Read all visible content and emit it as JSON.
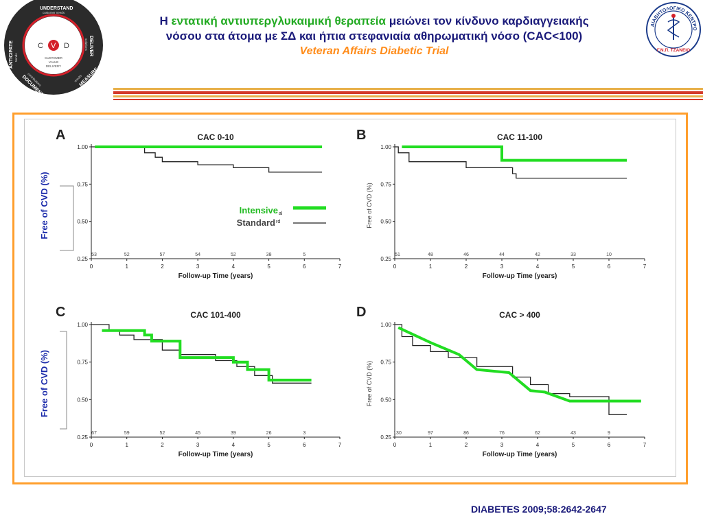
{
  "header": {
    "title_prefix": "Η ",
    "title_highlight": "εντατική αντιυπεργλυκαιμική θεραπεία",
    "title_rest_line1": " μειώνει τον κίνδυνο καρδιαγγειακής",
    "title_line2": "νόσου στα άτομα με ΣΔ και ήπια στεφανιαία αθηρωματική νόσο (CAC<100)",
    "subtitle": "Veteran Affairs Diabetic Trial",
    "colors": {
      "title": "#1a1a7a",
      "highlight": "#22aa22",
      "subtitle": "#ff8c1a"
    }
  },
  "logo_left": {
    "outer_ring": [
      "UNDERSTAND",
      "DELIVER",
      "MEASURE",
      "DOCUMENT",
      "ANTICIPATE"
    ],
    "outer_ring_sub": [
      "customer needs",
      "solutions",
      "results",
      "contributions",
      "trends"
    ],
    "center_letters": [
      "C",
      "V",
      "D"
    ],
    "center_text": [
      "CUSTOMER",
      "VALUE",
      "DELIVERY"
    ]
  },
  "logo_right": {
    "ring_text": "ΔΙΑΒΗΤΟΛΟΓΙΚΟ ΚΕΝΤΡΟ",
    "bottom_text": "Γ.Ν.Π. ΤΖΑΝΕΙΟ",
    "icon": "caduceus-icon"
  },
  "figure": {
    "frame_color": "#ff9e2c"
  },
  "legend": {
    "intensive": "Intensive",
    "intensive_sup": "al",
    "standard": "Standard",
    "standard_sup": "rd"
  },
  "citation": "DIABETES 2009;58:2642-2647",
  "chart_data": [
    {
      "panel": "A",
      "type": "line",
      "title": "CAC 0-10",
      "xlabel": "Follow-up Time (years)",
      "ylabel": "Free of CVD (%)",
      "xlim": [
        0,
        7
      ],
      "ylim": [
        0.25,
        1.0
      ],
      "xticks": [
        "0",
        "1",
        "2",
        "3",
        "4",
        "5",
        "6",
        "7"
      ],
      "yticks": [
        "1.00",
        "0.75",
        "0.50",
        "0.25"
      ],
      "at_risk": [
        "53",
        "52",
        "57",
        "54",
        "52",
        "38",
        "5"
      ],
      "series": [
        {
          "name": "Intensive",
          "color": "#22dd22",
          "x": [
            0.1,
            6.5
          ],
          "y": [
            1.0,
            1.0
          ]
        },
        {
          "name": "Standard",
          "color": "#222222",
          "x": [
            0,
            1.5,
            1.5,
            1.8,
            1.8,
            2.0,
            2.0,
            3.0,
            3.0,
            4.0,
            4.0,
            5.0,
            5.0,
            6.5
          ],
          "y": [
            1.0,
            1.0,
            0.96,
            0.96,
            0.93,
            0.93,
            0.9,
            0.9,
            0.88,
            0.88,
            0.86,
            0.86,
            0.83,
            0.83
          ]
        }
      ]
    },
    {
      "panel": "B",
      "type": "line",
      "title": "CAC 11-100",
      "xlabel": "Follow-up Time (years)",
      "ylabel": "Free of CVD (%)",
      "xlim": [
        0,
        7
      ],
      "ylim": [
        0.25,
        1.0
      ],
      "xticks": [
        "0",
        "1",
        "2",
        "3",
        "4",
        "5",
        "6",
        "7"
      ],
      "yticks": [
        "1.00",
        "0.75",
        "0.50",
        "0.25"
      ],
      "at_risk": [
        "51",
        "48",
        "46",
        "44",
        "42",
        "33",
        "10"
      ],
      "series": [
        {
          "name": "Intensive",
          "color": "#22dd22",
          "x": [
            0.2,
            3.0,
            3.0,
            6.5
          ],
          "y": [
            1.0,
            1.0,
            0.91,
            0.91
          ]
        },
        {
          "name": "Standard",
          "color": "#222222",
          "x": [
            0,
            0.1,
            0.1,
            0.4,
            0.4,
            1.0,
            1.0,
            2.0,
            2.0,
            3.3,
            3.3,
            3.4,
            3.4,
            6.5
          ],
          "y": [
            1.0,
            1.0,
            0.96,
            0.96,
            0.9,
            0.9,
            0.9,
            0.9,
            0.86,
            0.86,
            0.82,
            0.82,
            0.79,
            0.79
          ]
        }
      ]
    },
    {
      "panel": "C",
      "type": "line",
      "title": "CAC 101-400",
      "xlabel": "Follow-up Time (years)",
      "ylabel": "Free of CVD (%)",
      "xlim": [
        0,
        7
      ],
      "ylim": [
        0.25,
        1.0
      ],
      "xticks": [
        "0",
        "1",
        "2",
        "3",
        "4",
        "5",
        "6",
        "7"
      ],
      "yticks": [
        "1.00",
        "0.75",
        "0.50",
        "0.25"
      ],
      "at_risk": [
        "67",
        "59",
        "52",
        "45",
        "39",
        "26",
        "3"
      ],
      "series": [
        {
          "name": "Intensive",
          "color": "#22dd22",
          "x": [
            0.3,
            1.5,
            1.5,
            1.7,
            1.7,
            2.5,
            2.5,
            4.0,
            4.0,
            4.4,
            4.4,
            5.0,
            5.0,
            6.2
          ],
          "y": [
            0.96,
            0.96,
            0.93,
            0.93,
            0.89,
            0.89,
            0.78,
            0.78,
            0.75,
            0.75,
            0.7,
            0.7,
            0.63,
            0.63
          ]
        },
        {
          "name": "Standard",
          "color": "#222222",
          "x": [
            0,
            0.5,
            0.5,
            0.8,
            0.8,
            1.2,
            1.2,
            2.0,
            2.0,
            2.5,
            2.5,
            3.5,
            3.5,
            4.1,
            4.1,
            4.6,
            4.6,
            5.1,
            5.1,
            6.2
          ],
          "y": [
            1.0,
            1.0,
            0.96,
            0.96,
            0.93,
            0.93,
            0.9,
            0.9,
            0.83,
            0.83,
            0.8,
            0.8,
            0.76,
            0.76,
            0.72,
            0.72,
            0.66,
            0.66,
            0.61,
            0.61
          ]
        }
      ]
    },
    {
      "panel": "D",
      "type": "line",
      "title": "CAC > 400",
      "xlabel": "Follow-up Time (years)",
      "ylabel": "Free of CVD (%)",
      "xlim": [
        0,
        7
      ],
      "ylim": [
        0.25,
        1.0
      ],
      "xticks": [
        "0",
        "1",
        "2",
        "3",
        "4",
        "5",
        "6",
        "7"
      ],
      "yticks": [
        "1.00",
        "0.75",
        "0.50",
        "0.25"
      ],
      "at_risk": [
        "130",
        "97",
        "86",
        "76",
        "62",
        "43",
        "9"
      ],
      "series": [
        {
          "name": "Intensive",
          "color": "#22dd22",
          "x": [
            0.1,
            1.0,
            1.8,
            2.3,
            3.2,
            3.8,
            4.2,
            4.9,
            6.9
          ],
          "y": [
            0.98,
            0.88,
            0.8,
            0.7,
            0.68,
            0.56,
            0.55,
            0.49,
            0.49
          ]
        },
        {
          "name": "Standard",
          "color": "#222222",
          "x": [
            0,
            0.2,
            0.2,
            0.5,
            0.5,
            1.0,
            1.0,
            1.5,
            1.5,
            2.3,
            2.3,
            3.3,
            3.3,
            3.8,
            3.8,
            4.3,
            4.3,
            4.9,
            4.9,
            6.0,
            6.0,
            6.5
          ],
          "y": [
            1.0,
            1.0,
            0.92,
            0.92,
            0.86,
            0.86,
            0.82,
            0.82,
            0.78,
            0.78,
            0.72,
            0.72,
            0.65,
            0.65,
            0.6,
            0.6,
            0.54,
            0.54,
            0.52,
            0.52,
            0.4,
            0.4
          ]
        }
      ]
    }
  ]
}
